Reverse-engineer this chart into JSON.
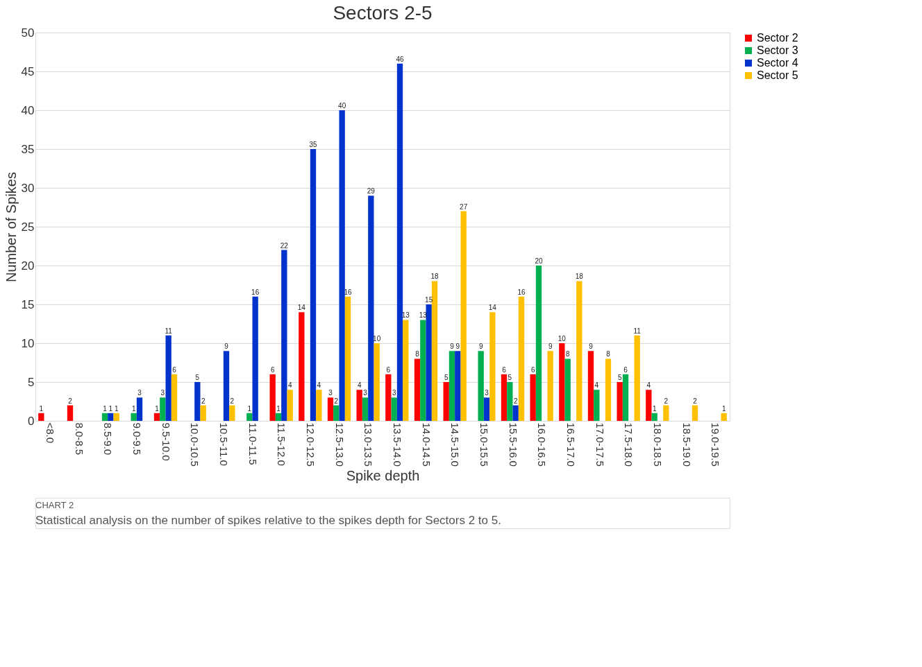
{
  "chart_data": {
    "type": "bar",
    "title": "Sectors 2-5",
    "xlabel": "Spike depth",
    "ylabel": "Number of Spikes",
    "categories": [
      "<8.0",
      "8.0-8.5",
      "8.5-9.0",
      "9.0-9.5",
      "9.5-10.0",
      "10.0-10.5",
      "10.5-11.0",
      "11.0-11.5",
      "11.5-12.0",
      "12.0-12.5",
      "12.5-13.0",
      "13.0-13.5",
      "13.5-14.0",
      "14.0-14.5",
      "14.5-15.0",
      "15.0-15.5",
      "15.5-16.0",
      "16.0-16.5",
      "16.5-17.0",
      "17.0-17.5",
      "17.5-18.0",
      "18.0-18.5",
      "18.5-19.0",
      "19.0-19.5"
    ],
    "series": [
      {
        "name": "Sector 2",
        "color": "#ff0000",
        "values": [
          1,
          2,
          null,
          null,
          1,
          null,
          null,
          null,
          6,
          14,
          3,
          4,
          6,
          8,
          5,
          null,
          6,
          6,
          10,
          9,
          5,
          4,
          null,
          null
        ]
      },
      {
        "name": "Sector 3",
        "color": "#00b050",
        "values": [
          null,
          null,
          1,
          1,
          3,
          null,
          null,
          1,
          1,
          null,
          2,
          3,
          3,
          13,
          9,
          9,
          5,
          20,
          8,
          4,
          6,
          1,
          null,
          null
        ]
      },
      {
        "name": "Sector 4",
        "color": "#0033cc",
        "values": [
          null,
          null,
          1,
          3,
          11,
          5,
          9,
          16,
          22,
          35,
          40,
          29,
          46,
          15,
          9,
          3,
          2,
          null,
          null,
          null,
          null,
          null,
          null,
          null
        ]
      },
      {
        "name": "Sector 5",
        "color": "#ffc000",
        "values": [
          null,
          null,
          1,
          null,
          6,
          2,
          2,
          null,
          4,
          4,
          16,
          10,
          13,
          18,
          27,
          14,
          16,
          9,
          18,
          8,
          11,
          2,
          2,
          1
        ]
      }
    ],
    "ylim": [
      0,
      50
    ],
    "yticks": [
      0,
      5,
      10,
      15,
      20,
      25,
      30,
      35,
      40,
      45,
      50
    ],
    "grid": "y",
    "legend": "right",
    "data_labels": true,
    "annotations": [
      "CHART 2",
      "Statistical analysis on the number of spikes relative to the spikes depth for Sectors 2 to 5."
    ]
  }
}
